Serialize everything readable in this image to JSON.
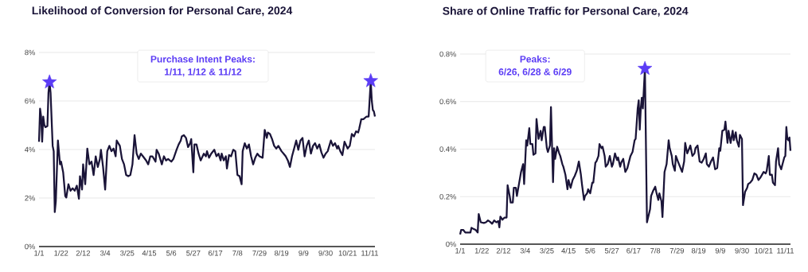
{
  "chart_data": [
    {
      "type": "line",
      "title": "Likelihood of Conversion for Personal Care, 2024",
      "annotations": [
        "Purchase Intent Peaks:",
        "1/11, 1/12 & 11/12"
      ],
      "xlim": [
        "2024-01-01",
        "2024-11-16"
      ],
      "xticks": [
        {
          "value": "2024-01-01",
          "label": "1/1"
        },
        {
          "value": "2024-01-22",
          "label": "1/22"
        },
        {
          "value": "2024-02-12",
          "label": "2/12"
        },
        {
          "value": "2024-03-04",
          "label": "3/4"
        },
        {
          "value": "2024-03-25",
          "label": "3/25"
        },
        {
          "value": "2024-04-15",
          "label": "4/15"
        },
        {
          "value": "2024-05-06",
          "label": "5/6"
        },
        {
          "value": "2024-05-27",
          "label": "5/27"
        },
        {
          "value": "2024-06-17",
          "label": "6/17"
        },
        {
          "value": "2024-07-08",
          "label": "7/8"
        },
        {
          "value": "2024-07-29",
          "label": "7/29"
        },
        {
          "value": "2024-08-19",
          "label": "8/19"
        },
        {
          "value": "2024-09-09",
          "label": "9/9"
        },
        {
          "value": "2024-09-30",
          "label": "9/30"
        },
        {
          "value": "2024-10-21",
          "label": "10/21"
        },
        {
          "value": "2024-11-11",
          "label": "11/11"
        }
      ],
      "ylim": [
        0,
        8
      ],
      "yticks": [
        {
          "value": 0,
          "label": "0%"
        },
        {
          "value": 2,
          "label": "2%"
        },
        {
          "value": 4,
          "label": "4%"
        },
        {
          "value": 6,
          "label": "6%"
        },
        {
          "value": 8,
          "label": "8%"
        }
      ],
      "grid": "y",
      "line_style": "solid",
      "series": [
        {
          "color": "#1a1438",
          "marker": "none",
          "x": [
            "2024-01-01",
            "2024-01-02",
            "2024-01-03",
            "2024-01-04",
            "2024-01-05",
            "2024-01-06",
            "2024-01-07",
            "2024-01-09",
            "2024-01-10",
            "2024-01-11",
            "2024-01-12",
            "2024-01-14",
            "2024-01-15",
            "2024-01-16",
            "2024-01-17",
            "2024-01-19",
            "2024-01-21",
            "2024-01-22",
            "2024-01-24",
            "2024-01-26",
            "2024-01-27",
            "2024-01-29",
            "2024-01-31",
            "2024-02-02",
            "2024-02-04",
            "2024-02-06",
            "2024-02-08",
            "2024-02-09",
            "2024-02-11",
            "2024-02-12",
            "2024-02-14",
            "2024-02-16",
            "2024-02-18",
            "2024-02-20",
            "2024-02-22",
            "2024-02-24",
            "2024-02-26",
            "2024-02-28",
            "2024-02-29",
            "2024-03-02",
            "2024-03-04",
            "2024-03-06",
            "2024-03-08",
            "2024-03-10",
            "2024-03-12",
            "2024-03-14",
            "2024-03-15",
            "2024-03-18",
            "2024-03-20",
            "2024-03-22",
            "2024-03-24",
            "2024-03-26",
            "2024-03-28",
            "2024-03-30",
            "2024-04-01",
            "2024-04-03",
            "2024-04-05",
            "2024-04-07",
            "2024-04-09",
            "2024-04-12",
            "2024-04-14",
            "2024-04-16",
            "2024-04-18",
            "2024-04-21",
            "2024-04-22",
            "2024-04-24",
            "2024-04-27",
            "2024-04-29",
            "2024-05-01",
            "2024-05-03",
            "2024-05-06",
            "2024-05-08",
            "2024-05-11",
            "2024-05-13",
            "2024-05-15",
            "2024-05-16",
            "2024-05-18",
            "2024-05-20",
            "2024-05-22",
            "2024-05-24",
            "2024-05-25",
            "2024-05-27",
            "2024-05-28",
            "2024-05-30",
            "2024-06-01",
            "2024-06-03",
            "2024-06-06",
            "2024-06-08",
            "2024-06-09",
            "2024-06-11",
            "2024-06-13",
            "2024-06-16",
            "2024-06-18",
            "2024-06-20",
            "2024-06-22",
            "2024-06-23",
            "2024-06-25",
            "2024-06-27",
            "2024-06-28",
            "2024-06-30",
            "2024-07-02",
            "2024-07-04",
            "2024-07-06",
            "2024-07-08",
            "2024-07-10",
            "2024-07-12",
            "2024-07-13",
            "2024-07-15",
            "2024-07-17",
            "2024-07-19",
            "2024-07-21",
            "2024-07-23",
            "2024-07-25",
            "2024-07-27",
            "2024-07-29",
            "2024-08-01",
            "2024-08-03",
            "2024-08-05",
            "2024-08-06",
            "2024-08-08",
            "2024-08-10",
            "2024-08-12",
            "2024-08-14",
            "2024-08-16",
            "2024-08-19",
            "2024-08-21",
            "2024-08-23",
            "2024-08-25",
            "2024-08-27",
            "2024-08-29",
            "2024-08-31",
            "2024-09-02",
            "2024-09-04",
            "2024-09-06",
            "2024-09-08",
            "2024-09-10",
            "2024-09-12",
            "2024-09-14",
            "2024-09-16",
            "2024-09-18",
            "2024-09-20",
            "2024-09-22",
            "2024-09-24",
            "2024-09-26",
            "2024-09-28",
            "2024-09-30",
            "2024-10-02",
            "2024-10-05",
            "2024-10-07",
            "2024-10-09",
            "2024-10-11",
            "2024-10-12",
            "2024-10-14",
            "2024-10-16",
            "2024-10-18",
            "2024-10-21",
            "2024-10-23",
            "2024-10-25",
            "2024-10-27",
            "2024-10-29",
            "2024-10-31",
            "2024-11-01",
            "2024-11-03",
            "2024-11-05",
            "2024-11-08",
            "2024-11-10",
            "2024-11-12",
            "2024-11-13",
            "2024-11-14",
            "2024-11-15",
            "2024-11-16"
          ],
          "values": [
            4.32,
            5.68,
            5.36,
            4.32,
            5.36,
            5.03,
            4.92,
            4.97,
            6.34,
            6.78,
            6.34,
            4.15,
            3.93,
            1.42,
            1.86,
            4.37,
            3.39,
            3.5,
            3.06,
            2.08,
            2.02,
            2.57,
            2.3,
            2.4,
            2.3,
            2.51,
            1.97,
            2.9,
            2.35,
            3.39,
            2.57,
            4.04,
            3.39,
            3.5,
            2.95,
            3.72,
            3.28,
            3.61,
            3.99,
            3.28,
            2.35,
            3.93,
            4.15,
            3.93,
            4.04,
            3.72,
            4.37,
            4.15,
            3.61,
            3.39,
            2.95,
            2.9,
            2.95,
            3.39,
            4.59,
            3.83,
            3.61,
            3.83,
            3.72,
            3.55,
            3.39,
            3.72,
            3.72,
            3.5,
            3.99,
            3.83,
            3.39,
            3.72,
            3.55,
            3.61,
            3.5,
            3.61,
            3.99,
            4.21,
            4.37,
            4.54,
            4.59,
            4.48,
            4.1,
            4.26,
            4.43,
            3.06,
            4.21,
            4.21,
            3.83,
            3.55,
            3.83,
            3.72,
            3.93,
            3.66,
            3.83,
            3.99,
            3.72,
            3.83,
            3.55,
            3.83,
            3.55,
            3.72,
            3.22,
            3.77,
            3.72,
            3.99,
            3.93,
            2.95,
            2.9,
            2.57,
            3.93,
            4.26,
            4.04,
            4.21,
            3.72,
            3.39,
            3.66,
            3.83,
            3.72,
            3.66,
            4.81,
            4.48,
            4.7,
            4.64,
            4.43,
            4.15,
            4.04,
            4.15,
            3.93,
            3.83,
            3.72,
            3.55,
            3.28,
            3.72,
            4.04,
            4.37,
            3.99,
            4.37,
            4.48,
            3.72,
            4.15,
            4.37,
            3.83,
            4.15,
            4.26,
            4.04,
            4.21,
            3.88,
            3.66,
            3.83,
            3.93,
            4.37,
            4.15,
            4.26,
            4.04,
            4.15,
            3.93,
            3.77,
            4.32,
            4.04,
            4.15,
            4.64,
            4.54,
            4.75,
            4.7,
            4.86,
            5.25,
            5.25,
            5.36,
            5.36,
            6.83,
            6.01,
            5.63,
            5.57,
            5.36
          ]
        },
        {
          "type": "scatter",
          "color": "#5b3cf5",
          "marker": "star",
          "x": [
            "2024-01-11",
            "2024-11-12"
          ],
          "values": [
            6.78,
            6.83
          ]
        }
      ]
    },
    {
      "type": "line",
      "title": "Share of Online Traffic for Personal Care,  2024",
      "annotations": [
        "Peaks:",
        "6/26, 6/28 & 6/29"
      ],
      "xlim": [
        "2024-01-01",
        "2024-11-16"
      ],
      "xticks": [
        {
          "value": "2024-01-01",
          "label": "1/1"
        },
        {
          "value": "2024-01-22",
          "label": "1/22"
        },
        {
          "value": "2024-02-12",
          "label": "2/12"
        },
        {
          "value": "2024-03-04",
          "label": "3/4"
        },
        {
          "value": "2024-03-25",
          "label": "3/25"
        },
        {
          "value": "2024-04-15",
          "label": "4/15"
        },
        {
          "value": "2024-05-06",
          "label": "5/6"
        },
        {
          "value": "2024-05-27",
          "label": "5/27"
        },
        {
          "value": "2024-06-17",
          "label": "6/17"
        },
        {
          "value": "2024-07-08",
          "label": "7/8"
        },
        {
          "value": "2024-07-29",
          "label": "7/29"
        },
        {
          "value": "2024-08-19",
          "label": "8/19"
        },
        {
          "value": "2024-09-09",
          "label": "9/9"
        },
        {
          "value": "2024-09-30",
          "label": "9/30"
        },
        {
          "value": "2024-10-21",
          "label": "10/21"
        },
        {
          "value": "2024-11-11",
          "label": "11/11"
        }
      ],
      "ylim": [
        0,
        0.8
      ],
      "yticks": [
        {
          "value": 0,
          "label": "0%"
        },
        {
          "value": 0.2,
          "label": "0.2%"
        },
        {
          "value": 0.4,
          "label": "0.4%"
        },
        {
          "value": 0.6,
          "label": "0.6%"
        },
        {
          "value": 0.8,
          "label": "0.8%"
        }
      ],
      "grid": "y",
      "line_style": "solid",
      "series": [
        {
          "color": "#1a1438",
          "marker": "none",
          "x": [
            "2024-01-01",
            "2024-01-02",
            "2024-01-04",
            "2024-01-06",
            "2024-01-08",
            "2024-01-11",
            "2024-01-12",
            "2024-01-14",
            "2024-01-16",
            "2024-01-18",
            "2024-01-19",
            "2024-01-21",
            "2024-01-24",
            "2024-01-26",
            "2024-01-28",
            "2024-01-30",
            "2024-02-01",
            "2024-02-03",
            "2024-02-05",
            "2024-02-07",
            "2024-02-08",
            "2024-02-09",
            "2024-02-11",
            "2024-02-13",
            "2024-02-15",
            "2024-02-16",
            "2024-02-18",
            "2024-02-19",
            "2024-02-21",
            "2024-02-22",
            "2024-02-24",
            "2024-02-25",
            "2024-02-27",
            "2024-02-29",
            "2024-03-02",
            "2024-03-03",
            "2024-03-05",
            "2024-03-06",
            "2024-03-08",
            "2024-03-09",
            "2024-03-11",
            "2024-03-12",
            "2024-03-14",
            "2024-03-15",
            "2024-03-17",
            "2024-03-19",
            "2024-03-20",
            "2024-03-22",
            "2024-03-23",
            "2024-03-25",
            "2024-03-26",
            "2024-03-28",
            "2024-03-29",
            "2024-03-31",
            "2024-04-01",
            "2024-04-02",
            "2024-04-04",
            "2024-04-06",
            "2024-04-07",
            "2024-04-09",
            "2024-04-10",
            "2024-04-12",
            "2024-04-14",
            "2024-04-15",
            "2024-04-17",
            "2024-04-19",
            "2024-04-21",
            "2024-04-23",
            "2024-04-25",
            "2024-04-27",
            "2024-04-28",
            "2024-04-30",
            "2024-05-01",
            "2024-05-03",
            "2024-05-04",
            "2024-05-06",
            "2024-05-08",
            "2024-05-09",
            "2024-05-11",
            "2024-05-12",
            "2024-05-14",
            "2024-05-15",
            "2024-05-17",
            "2024-05-18",
            "2024-05-20",
            "2024-05-21",
            "2024-05-23",
            "2024-05-25",
            "2024-05-27",
            "2024-05-28",
            "2024-05-30",
            "2024-06-01",
            "2024-06-02",
            "2024-06-04",
            "2024-06-05",
            "2024-06-07",
            "2024-06-09",
            "2024-06-11",
            "2024-06-14",
            "2024-06-16",
            "2024-06-18",
            "2024-06-19",
            "2024-06-21",
            "2024-06-22",
            "2024-06-23",
            "2024-06-24",
            "2024-06-25",
            "2024-06-26",
            "2024-06-28",
            "2024-06-30",
            "2024-07-03",
            "2024-07-04",
            "2024-07-06",
            "2024-07-08",
            "2024-07-09",
            "2024-07-11",
            "2024-07-12",
            "2024-07-14",
            "2024-07-15",
            "2024-07-17",
            "2024-07-19",
            "2024-07-21",
            "2024-07-22",
            "2024-07-24",
            "2024-07-25",
            "2024-07-27",
            "2024-07-28",
            "2024-07-30",
            "2024-08-01",
            "2024-08-03",
            "2024-08-05",
            "2024-08-06",
            "2024-08-08",
            "2024-08-10",
            "2024-08-11",
            "2024-08-13",
            "2024-08-15",
            "2024-08-16",
            "2024-08-18",
            "2024-08-20",
            "2024-08-22",
            "2024-08-24",
            "2024-08-26",
            "2024-08-27",
            "2024-08-29",
            "2024-08-31",
            "2024-09-02",
            "2024-09-04",
            "2024-09-06",
            "2024-09-08",
            "2024-09-09",
            "2024-09-11",
            "2024-09-13",
            "2024-09-14",
            "2024-09-16",
            "2024-09-17",
            "2024-09-19",
            "2024-09-21",
            "2024-09-22",
            "2024-09-24",
            "2024-09-25",
            "2024-09-27",
            "2024-09-28",
            "2024-09-30",
            "2024-10-01",
            "2024-10-03",
            "2024-10-05",
            "2024-10-06",
            "2024-10-08",
            "2024-10-10",
            "2024-10-12",
            "2024-10-14",
            "2024-10-16",
            "2024-10-18",
            "2024-10-21",
            "2024-10-23",
            "2024-10-24",
            "2024-10-26",
            "2024-10-27",
            "2024-10-29",
            "2024-10-30",
            "2024-11-01",
            "2024-11-02",
            "2024-11-04",
            "2024-11-05",
            "2024-11-07",
            "2024-11-08",
            "2024-11-10",
            "2024-11-11",
            "2024-11-12",
            "2024-11-13",
            "2024-11-14",
            "2024-11-15",
            "2024-11-16"
          ],
          "values": [
            0.041,
            0.06,
            0.06,
            0.049,
            0.049,
            0.049,
            0.069,
            0.064,
            0.06,
            0.049,
            0.127,
            0.092,
            0.089,
            0.092,
            0.1,
            0.094,
            0.086,
            0.1,
            0.092,
            0.097,
            0.071,
            0.116,
            0.103,
            0.112,
            0.112,
            0.248,
            0.203,
            0.175,
            0.175,
            0.237,
            0.237,
            0.203,
            0.253,
            0.304,
            0.337,
            0.253,
            0.437,
            0.415,
            0.488,
            0.421,
            0.421,
            0.376,
            0.382,
            0.527,
            0.443,
            0.477,
            0.437,
            0.493,
            0.493,
            0.404,
            0.388,
            0.415,
            0.577,
            0.261,
            0.404,
            0.359,
            0.41,
            0.382,
            0.371,
            0.337,
            0.326,
            0.292,
            0.231,
            0.27,
            0.237,
            0.27,
            0.287,
            0.309,
            0.348,
            0.292,
            0.253,
            0.186,
            0.203,
            0.214,
            0.231,
            0.214,
            0.259,
            0.259,
            0.343,
            0.348,
            0.371,
            0.421,
            0.404,
            0.41,
            0.371,
            0.326,
            0.337,
            0.371,
            0.326,
            0.337,
            0.382,
            0.354,
            0.365,
            0.326,
            0.343,
            0.359,
            0.304,
            0.32,
            0.371,
            0.388,
            0.437,
            0.443,
            0.571,
            0.605,
            0.482,
            0.571,
            0.616,
            0.571,
            0.739,
            0.092,
            0.147,
            0.203,
            0.225,
            0.242,
            0.22,
            0.186,
            0.214,
            0.181,
            0.114,
            0.304,
            0.337,
            0.437,
            0.404,
            0.371,
            0.337,
            0.309,
            0.371,
            0.348,
            0.326,
            0.304,
            0.348,
            0.426,
            0.382,
            0.404,
            0.415,
            0.371,
            0.382,
            0.404,
            0.415,
            0.348,
            0.343,
            0.359,
            0.382,
            0.337,
            0.326,
            0.348,
            0.365,
            0.315,
            0.32,
            0.404,
            0.393,
            0.477,
            0.482,
            0.516,
            0.426,
            0.477,
            0.426,
            0.477,
            0.437,
            0.471,
            0.437,
            0.41,
            0.46,
            0.443,
            0.164,
            0.22,
            0.237,
            0.253,
            0.259,
            0.27,
            0.298,
            0.292,
            0.27,
            0.281,
            0.304,
            0.298,
            0.309,
            0.371,
            0.292,
            0.292,
            0.259,
            0.248,
            0.348,
            0.404,
            0.337,
            0.315,
            0.332,
            0.365,
            0.371,
            0.493,
            0.443,
            0.437,
            0.449,
            0.393
          ]
        },
        {
          "type": "scatter",
          "color": "#5b3cf5",
          "marker": "star",
          "x": [
            "2024-06-28"
          ],
          "values": [
            0.739
          ]
        }
      ]
    }
  ]
}
